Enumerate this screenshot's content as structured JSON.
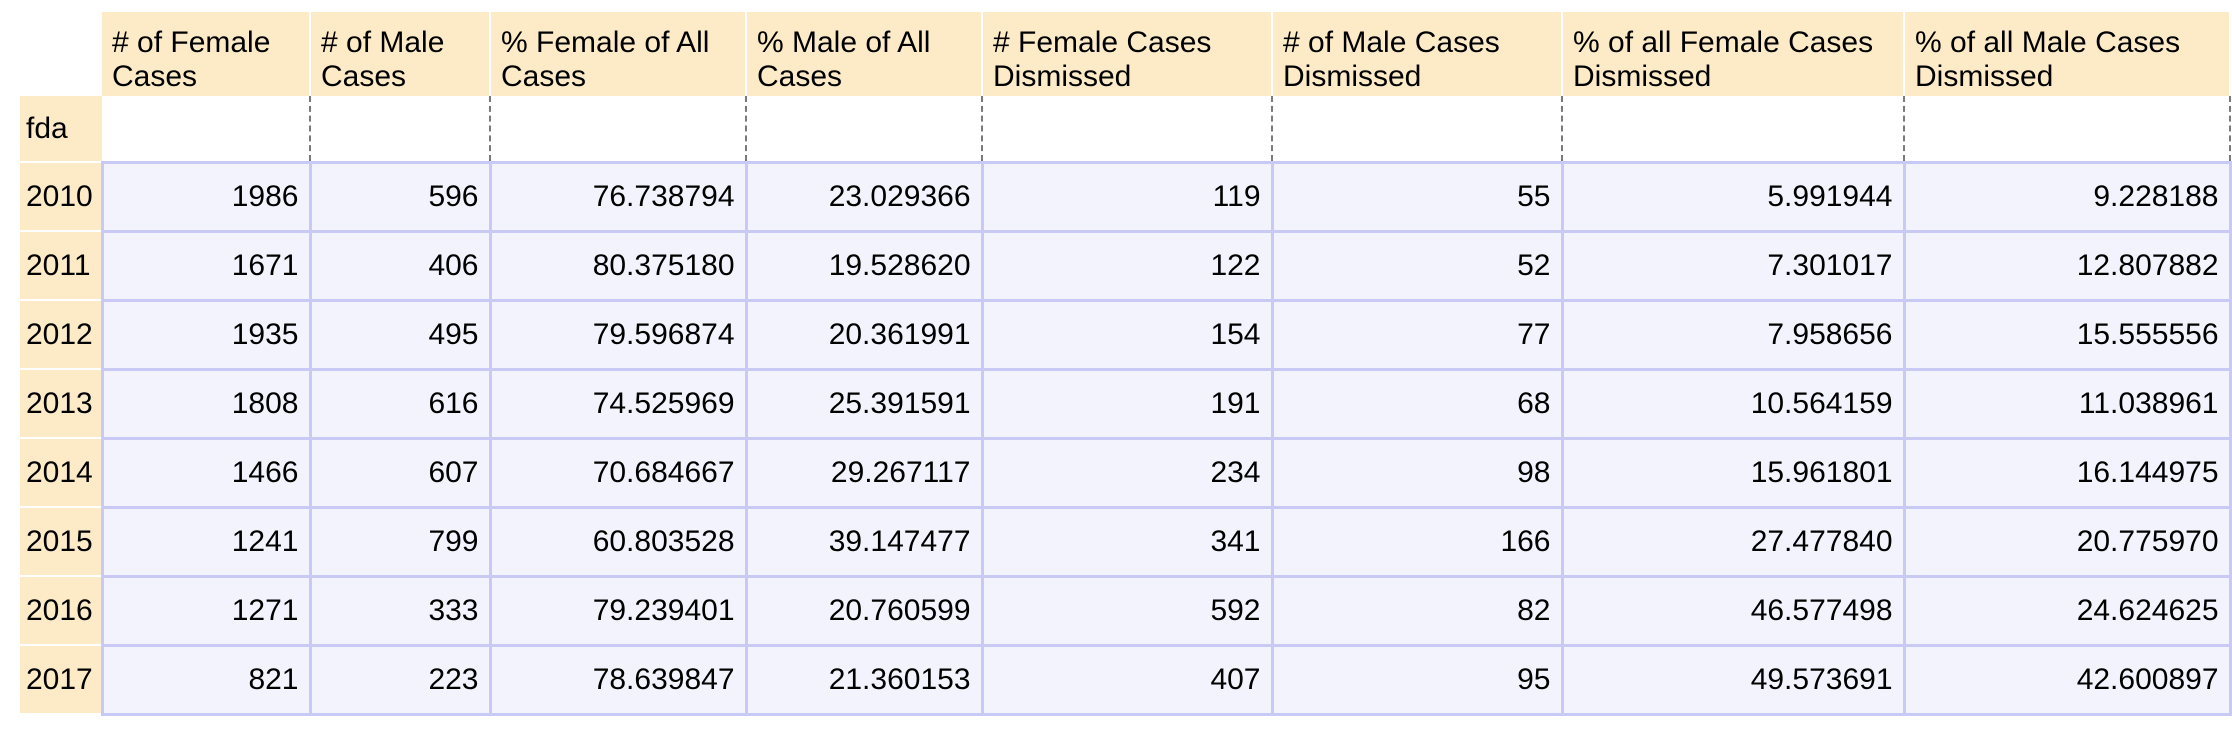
{
  "index_name": "fda",
  "columns": [
    "# of Female Cases",
    "# of Male Cases",
    "% Female of All Cases",
    "% Male of All Cases",
    "# Female Cases Dismissed",
    "# of Male Cases Dismissed",
    "% of all Female Cases Dismissed",
    "% of all Male Cases Dismissed"
  ],
  "rows": [
    {
      "year": "2010",
      "values": [
        "1986",
        "596",
        "76.738794",
        "23.029366",
        "119",
        "55",
        "5.991944",
        "9.228188"
      ]
    },
    {
      "year": "2011",
      "values": [
        "1671",
        "406",
        "80.375180",
        "19.528620",
        "122",
        "52",
        "7.301017",
        "12.807882"
      ]
    },
    {
      "year": "2012",
      "values": [
        "1935",
        "495",
        "79.596874",
        "20.361991",
        "154",
        "77",
        "7.958656",
        "15.555556"
      ]
    },
    {
      "year": "2013",
      "values": [
        "1808",
        "616",
        "74.525969",
        "25.391591",
        "191",
        "68",
        "10.564159",
        "11.038961"
      ]
    },
    {
      "year": "2014",
      "values": [
        "1466",
        "607",
        "70.684667",
        "29.267117",
        "234",
        "98",
        "15.961801",
        "16.144975"
      ]
    },
    {
      "year": "2015",
      "values": [
        "1241",
        "799",
        "60.803528",
        "39.147477",
        "341",
        "166",
        "27.477840",
        "20.775970"
      ]
    },
    {
      "year": "2016",
      "values": [
        "1271",
        "333",
        "79.239401",
        "20.760599",
        "592",
        "82",
        "46.577498",
        "24.624625"
      ]
    },
    {
      "year": "2017",
      "values": [
        "821",
        "223",
        "78.639847",
        "21.360153",
        "407",
        "95",
        "49.573691",
        "42.600897"
      ]
    }
  ]
}
